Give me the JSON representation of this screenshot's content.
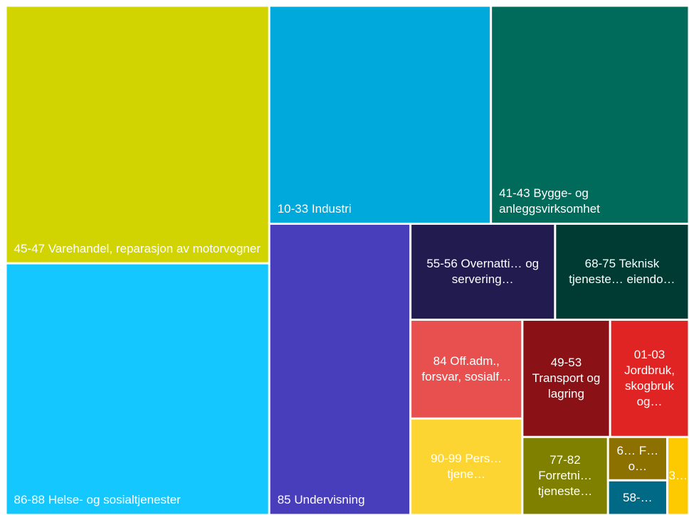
{
  "chart_data": {
    "type": "treemap",
    "categories": [
      "45-47 Varehandel, reparasjon av motorvogner",
      "86-88 Helse- og sosialtjenester",
      "10-33 Industri",
      "41-43 Bygge- og anleggsvirksomhet",
      "85 Undervisning",
      "55-56 Overnatti… og servering…",
      "68-75 Teknisk tjeneste… eiendo…",
      "84 Off.adm., forsvar, sosialf…",
      "90-99 Pers… tjene…",
      "49-53 Transport og lagring",
      "01-03 Jordbruk, skogbruk og…",
      "77-82 Forretni… tjeneste…",
      "6… F… o…",
      "58-…",
      "3…"
    ],
    "values": [
      132,
      129,
      94,
      84,
      80,
      27,
      25,
      21.5,
      21,
      20,
      18,
      13,
      5,
      4,
      3.3
    ],
    "colors": [
      "#d1d400",
      "#14c8ff",
      "#00a9dc",
      "#006b5b",
      "#483dba",
      "#221b4f",
      "#003b33",
      "#e84f4f",
      "#fdd532",
      "#8a1216",
      "#e02424",
      "#7f7f00",
      "#8c7000",
      "#006a86",
      "#fdc900"
    ]
  }
}
